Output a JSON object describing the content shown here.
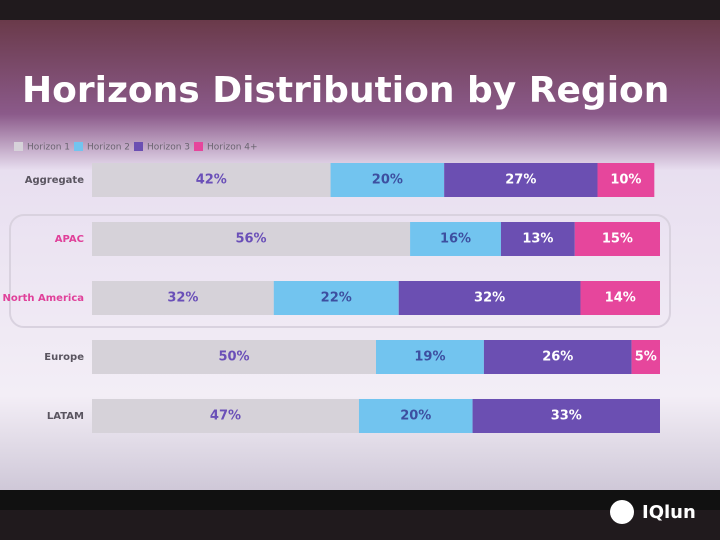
{
  "chart_data": {
    "type": "stacked-bar-horizontal",
    "title": "Horizons Distribution by Region",
    "categories": [
      "Aggregate",
      "APAC",
      "North America",
      "Europe",
      "LATAM"
    ],
    "category_colors": [
      "#5a5560",
      "#e0409a",
      "#e0409a",
      "#5a5560",
      "#5a5560"
    ],
    "xlim": [
      0,
      100
    ],
    "legend": "top-left",
    "series": [
      {
        "name": "Horizon 1",
        "color": "#d6d2d9",
        "label_color": "#6a4fb8",
        "values": [
          42,
          56,
          32,
          50,
          47
        ],
        "value_labels": [
          "42%",
          "56%",
          "32%",
          "50%",
          "47%"
        ]
      },
      {
        "name": "Horizon 2",
        "color": "#72c4ef",
        "label_color": "#3d4fa0",
        "values": [
          20,
          16,
          22,
          19,
          20
        ],
        "value_labels": [
          "20%",
          "16%",
          "22%",
          "19%",
          "20%"
        ]
      },
      {
        "name": "Horizon 3",
        "color": "#6b4fb2",
        "label_color": "#ffffff",
        "values": [
          27,
          13,
          32,
          26,
          33
        ],
        "value_labels": [
          "27%",
          "13%",
          "32%",
          "26%",
          "33%"
        ]
      },
      {
        "name": "Horizon 4+",
        "color": "#e6469c",
        "label_color": "#ffffff",
        "values": [
          10,
          15,
          14,
          5,
          null
        ],
        "value_labels": [
          "10%",
          "15%",
          "14%",
          "5%",
          null
        ]
      }
    ]
  },
  "watermark": "IQlun"
}
